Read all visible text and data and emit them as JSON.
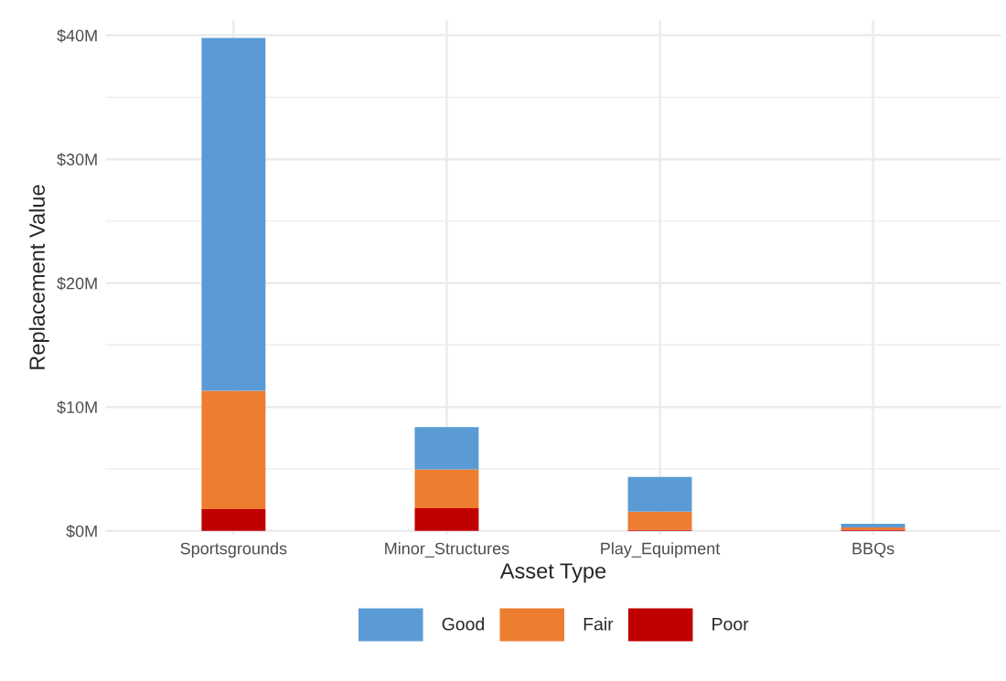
{
  "chart_data": {
    "type": "bar",
    "stacked": true,
    "xlabel": "Asset Type",
    "ylabel": "Replacement Value",
    "categories": [
      "Sportsgrounds",
      "Minor_Structures",
      "Play_Equipment",
      "BBQs"
    ],
    "series": [
      {
        "name": "Poor",
        "color": "#c00000",
        "values": [
          1.75,
          1.82,
          0.08,
          0.1
        ]
      },
      {
        "name": "Fair",
        "color": "#ed7d31",
        "values": [
          9.55,
          3.14,
          1.47,
          0.17
        ]
      },
      {
        "name": "Good",
        "color": "#5b9bd5",
        "values": [
          28.48,
          3.42,
          2.8,
          0.3
        ]
      }
    ],
    "ylim": [
      -0.3,
      41.2
    ],
    "yticks": [
      {
        "value": 0,
        "label": "$0M"
      },
      {
        "value": 10,
        "label": "$10M"
      },
      {
        "value": 20,
        "label": "$20M"
      },
      {
        "value": 30,
        "label": "$30M"
      },
      {
        "value": 40,
        "label": "$40M"
      }
    ],
    "grid": true,
    "legend": "bottom"
  }
}
